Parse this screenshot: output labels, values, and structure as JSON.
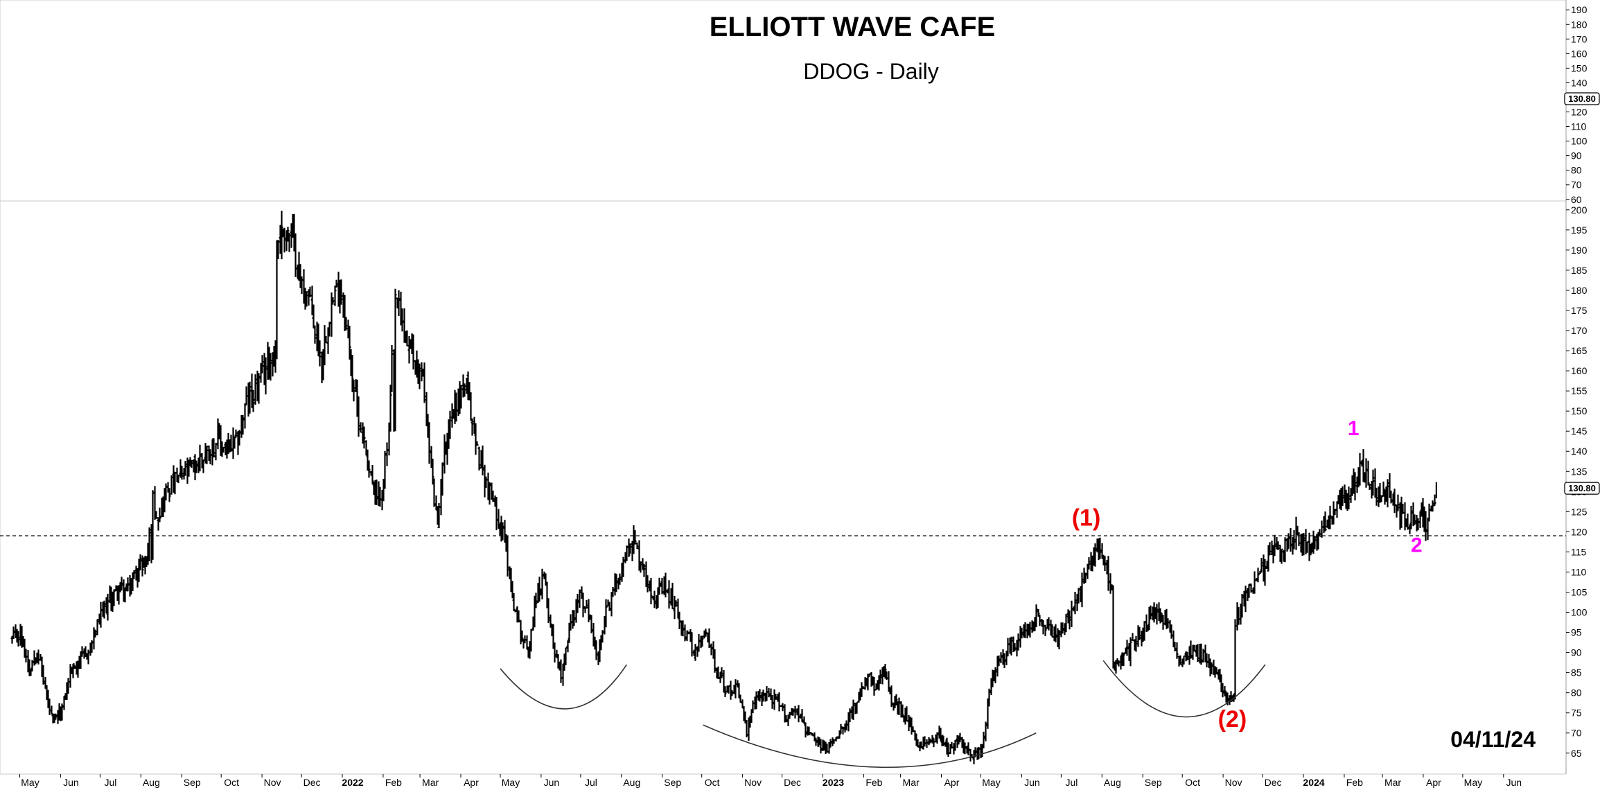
{
  "header": {
    "title": "ELLIOTT WAVE CAFE",
    "subtitle": "DDOG - Daily",
    "date_stamp": "04/11/24"
  },
  "chart_data": {
    "type": "ohlc",
    "ticker": "DDOG",
    "timeframe": "Daily",
    "last_price_label": "130.80",
    "last_price": 130.8,
    "horizontal_line": 119,
    "ylim": [
      61,
      201
    ],
    "y_ticks": [
      65,
      70,
      75,
      80,
      85,
      90,
      95,
      100,
      105,
      110,
      115,
      120,
      125,
      130,
      135,
      140,
      145,
      150,
      155,
      160,
      165,
      170,
      175,
      180,
      185,
      190,
      195,
      200
    ],
    "upper_panel_ylim": [
      58,
      192
    ],
    "upper_panel_ticks": [
      60,
      70,
      80,
      90,
      100,
      110,
      120,
      130,
      140,
      150,
      160,
      170,
      180,
      190
    ],
    "x_ticks": [
      {
        "label": "May",
        "date": "2021-05-01"
      },
      {
        "label": "Jun",
        "date": "2021-06-01"
      },
      {
        "label": "Jul",
        "date": "2021-07-01"
      },
      {
        "label": "Aug",
        "date": "2021-08-01"
      },
      {
        "label": "Sep",
        "date": "2021-09-01"
      },
      {
        "label": "Oct",
        "date": "2021-10-01"
      },
      {
        "label": "Nov",
        "date": "2021-11-01"
      },
      {
        "label": "Dec",
        "date": "2021-12-01"
      },
      {
        "label": "2022",
        "date": "2022-01-01",
        "bold": true
      },
      {
        "label": "Feb",
        "date": "2022-02-01"
      },
      {
        "label": "Mar",
        "date": "2022-03-01"
      },
      {
        "label": "Apr",
        "date": "2022-04-01"
      },
      {
        "label": "May",
        "date": "2022-05-01"
      },
      {
        "label": "Jun",
        "date": "2022-06-01"
      },
      {
        "label": "Jul",
        "date": "2022-07-01"
      },
      {
        "label": "Aug",
        "date": "2022-08-01"
      },
      {
        "label": "Sep",
        "date": "2022-09-01"
      },
      {
        "label": "Oct",
        "date": "2022-10-01"
      },
      {
        "label": "Nov",
        "date": "2022-11-01"
      },
      {
        "label": "Dec",
        "date": "2022-12-01"
      },
      {
        "label": "2023",
        "date": "2023-01-01",
        "bold": true
      },
      {
        "label": "Feb",
        "date": "2023-02-01"
      },
      {
        "label": "Mar",
        "date": "2023-03-01"
      },
      {
        "label": "Apr",
        "date": "2023-04-01"
      },
      {
        "label": "May",
        "date": "2023-05-01"
      },
      {
        "label": "Jun",
        "date": "2023-06-01"
      },
      {
        "label": "Jul",
        "date": "2023-07-01"
      },
      {
        "label": "Aug",
        "date": "2023-08-01"
      },
      {
        "label": "Sep",
        "date": "2023-09-01"
      },
      {
        "label": "Oct",
        "date": "2023-10-01"
      },
      {
        "label": "Nov",
        "date": "2023-11-01"
      },
      {
        "label": "Dec",
        "date": "2023-12-01"
      },
      {
        "label": "2024",
        "date": "2024-01-01",
        "bold": true
      },
      {
        "label": "Feb",
        "date": "2024-02-01"
      },
      {
        "label": "Mar",
        "date": "2024-03-01"
      },
      {
        "label": "Apr",
        "date": "2024-04-01"
      },
      {
        "label": "May",
        "date": "2024-05-01"
      },
      {
        "label": "Jun",
        "date": "2024-06-01"
      }
    ],
    "price_path": [
      [
        "2021-04-25",
        93
      ],
      [
        "2021-05-01",
        95
      ],
      [
        "2021-05-08",
        86
      ],
      [
        "2021-05-14",
        91
      ],
      [
        "2021-05-20",
        81
      ],
      [
        "2021-05-26",
        72
      ],
      [
        "2021-06-02",
        76
      ],
      [
        "2021-06-08",
        85
      ],
      [
        "2021-06-15",
        88
      ],
      [
        "2021-06-22",
        90
      ],
      [
        "2021-06-30",
        98
      ],
      [
        "2021-07-08",
        103
      ],
      [
        "2021-07-15",
        106
      ],
      [
        "2021-07-22",
        105
      ],
      [
        "2021-07-28",
        110
      ],
      [
        "2021-08-04",
        113
      ],
      [
        "2021-08-06",
        115
      ],
      [
        "2021-08-10",
        128
      ],
      [
        "2021-08-14",
        124
      ],
      [
        "2021-08-20",
        130
      ],
      [
        "2021-08-28",
        133
      ],
      [
        "2021-09-05",
        135
      ],
      [
        "2021-09-12",
        137
      ],
      [
        "2021-09-20",
        140
      ],
      [
        "2021-09-28",
        143
      ],
      [
        "2021-10-05",
        140
      ],
      [
        "2021-10-12",
        142
      ],
      [
        "2021-10-20",
        152
      ],
      [
        "2021-10-28",
        156
      ],
      [
        "2021-11-05",
        162
      ],
      [
        "2021-11-10",
        164
      ],
      [
        "2021-11-12",
        192
      ],
      [
        "2021-11-18",
        195
      ],
      [
        "2021-11-24",
        193
      ],
      [
        "2021-11-30",
        182
      ],
      [
        "2021-12-06",
        178
      ],
      [
        "2021-12-10",
        172
      ],
      [
        "2021-12-16",
        162
      ],
      [
        "2021-12-22",
        175
      ],
      [
        "2021-12-30",
        182
      ],
      [
        "2022-01-05",
        168
      ],
      [
        "2022-01-12",
        150
      ],
      [
        "2022-01-20",
        138
      ],
      [
        "2022-01-27",
        127
      ],
      [
        "2022-02-01",
        133
      ],
      [
        "2022-02-05",
        145
      ],
      [
        "2022-02-10",
        178
      ],
      [
        "2022-02-18",
        168
      ],
      [
        "2022-02-25",
        162
      ],
      [
        "2022-03-03",
        158
      ],
      [
        "2022-03-08",
        140
      ],
      [
        "2022-03-14",
        120
      ],
      [
        "2022-03-18",
        138
      ],
      [
        "2022-03-25",
        150
      ],
      [
        "2022-04-01",
        155
      ],
      [
        "2022-04-05",
        156
      ],
      [
        "2022-04-12",
        142
      ],
      [
        "2022-04-20",
        132
      ],
      [
        "2022-04-28",
        125
      ],
      [
        "2022-05-04",
        118
      ],
      [
        "2022-05-10",
        104
      ],
      [
        "2022-05-16",
        95
      ],
      [
        "2022-05-22",
        90
      ],
      [
        "2022-05-28",
        104
      ],
      [
        "2022-06-03",
        108
      ],
      [
        "2022-06-10",
        92
      ],
      [
        "2022-06-16",
        85
      ],
      [
        "2022-06-22",
        96
      ],
      [
        "2022-06-30",
        104
      ],
      [
        "2022-07-08",
        98
      ],
      [
        "2022-07-14",
        88
      ],
      [
        "2022-07-20",
        100
      ],
      [
        "2022-07-28",
        108
      ],
      [
        "2022-08-05",
        115
      ],
      [
        "2022-08-10",
        118
      ],
      [
        "2022-08-18",
        110
      ],
      [
        "2022-08-26",
        104
      ],
      [
        "2022-09-02",
        106
      ],
      [
        "2022-09-10",
        102
      ],
      [
        "2022-09-18",
        95
      ],
      [
        "2022-09-26",
        90
      ],
      [
        "2022-10-04",
        95
      ],
      [
        "2022-10-12",
        86
      ],
      [
        "2022-10-20",
        80
      ],
      [
        "2022-10-28",
        82
      ],
      [
        "2022-11-04",
        70
      ],
      [
        "2022-11-10",
        78
      ],
      [
        "2022-11-18",
        80
      ],
      [
        "2022-11-26",
        78
      ],
      [
        "2022-12-04",
        74
      ],
      [
        "2022-12-12",
        76
      ],
      [
        "2022-12-20",
        70
      ],
      [
        "2022-12-28",
        67
      ],
      [
        "2023-01-04",
        66
      ],
      [
        "2023-01-12",
        70
      ],
      [
        "2023-01-20",
        74
      ],
      [
        "2023-01-28",
        78
      ],
      [
        "2023-02-04",
        84
      ],
      [
        "2023-02-10",
        80
      ],
      [
        "2023-02-16",
        86
      ],
      [
        "2023-02-22",
        78
      ],
      [
        "2023-03-01",
        76
      ],
      [
        "2023-03-08",
        72
      ],
      [
        "2023-03-14",
        66
      ],
      [
        "2023-03-22",
        68
      ],
      [
        "2023-03-30",
        70
      ],
      [
        "2023-04-06",
        66
      ],
      [
        "2023-04-14",
        68
      ],
      [
        "2023-04-20",
        66
      ],
      [
        "2023-04-28",
        64
      ],
      [
        "2023-05-03",
        68
      ],
      [
        "2023-05-06",
        78
      ],
      [
        "2023-05-12",
        86
      ],
      [
        "2023-05-20",
        90
      ],
      [
        "2023-05-28",
        93
      ],
      [
        "2023-06-05",
        96
      ],
      [
        "2023-06-12",
        100
      ],
      [
        "2023-06-20",
        96
      ],
      [
        "2023-06-28",
        94
      ],
      [
        "2023-07-06",
        98
      ],
      [
        "2023-07-14",
        104
      ],
      [
        "2023-07-22",
        112
      ],
      [
        "2023-07-28",
        116
      ],
      [
        "2023-08-03",
        112
      ],
      [
        "2023-08-07",
        108
      ],
      [
        "2023-08-09",
        86
      ],
      [
        "2023-08-16",
        88
      ],
      [
        "2023-08-24",
        92
      ],
      [
        "2023-09-01",
        96
      ],
      [
        "2023-09-08",
        99
      ],
      [
        "2023-09-14",
        100
      ],
      [
        "2023-09-20",
        96
      ],
      [
        "2023-09-28",
        88
      ],
      [
        "2023-10-06",
        91
      ],
      [
        "2023-10-14",
        90
      ],
      [
        "2023-10-22",
        86
      ],
      [
        "2023-10-28",
        84
      ],
      [
        "2023-11-03",
        80
      ],
      [
        "2023-11-08",
        79
      ],
      [
        "2023-11-10",
        98
      ],
      [
        "2023-11-18",
        104
      ],
      [
        "2023-11-26",
        108
      ],
      [
        "2023-12-04",
        112
      ],
      [
        "2023-12-10",
        117
      ],
      [
        "2023-12-18",
        116
      ],
      [
        "2023-12-26",
        120
      ],
      [
        "2024-01-05",
        115
      ],
      [
        "2024-01-12",
        118
      ],
      [
        "2024-01-20",
        124
      ],
      [
        "2024-01-26",
        126
      ],
      [
        "2024-02-02",
        128
      ],
      [
        "2024-02-08",
        133
      ],
      [
        "2024-02-14",
        136
      ],
      [
        "2024-02-20",
        132
      ],
      [
        "2024-02-28",
        128
      ],
      [
        "2024-03-06",
        130
      ],
      [
        "2024-03-14",
        125
      ],
      [
        "2024-03-20",
        122
      ],
      [
        "2024-03-28",
        124
      ],
      [
        "2024-04-04",
        122
      ],
      [
        "2024-04-08",
        126
      ],
      [
        "2024-04-11",
        130.8
      ]
    ],
    "bases": [
      {
        "name": "base-1",
        "x_start": "2022-05-01",
        "x_mid": "2022-06-20",
        "x_end": "2022-08-05",
        "y_start": 86,
        "y_mid": 76,
        "y_end": 87
      },
      {
        "name": "base-2",
        "x_start": "2022-10-02",
        "x_mid": "2023-02-12",
        "x_end": "2023-06-12",
        "y_start": 72,
        "y_mid": 61.5,
        "y_end": 70
      },
      {
        "name": "base-3",
        "x_start": "2023-08-02",
        "x_mid": "2023-10-03",
        "x_end": "2023-12-03",
        "y_start": 88,
        "y_mid": 74,
        "y_end": 87
      }
    ],
    "wave_labels": [
      {
        "text": "(1)",
        "date": "2023-07-20",
        "price": 121.5,
        "color": "#ee0000"
      },
      {
        "text": "(2)",
        "date": "2023-11-08",
        "price": 71.5,
        "color": "#ee0000"
      },
      {
        "text": "1",
        "date": "2024-02-08",
        "price": 144,
        "color": "#ff00ff"
      },
      {
        "text": "2",
        "date": "2024-03-27",
        "price": 115,
        "color": "#ff00ff"
      }
    ]
  }
}
